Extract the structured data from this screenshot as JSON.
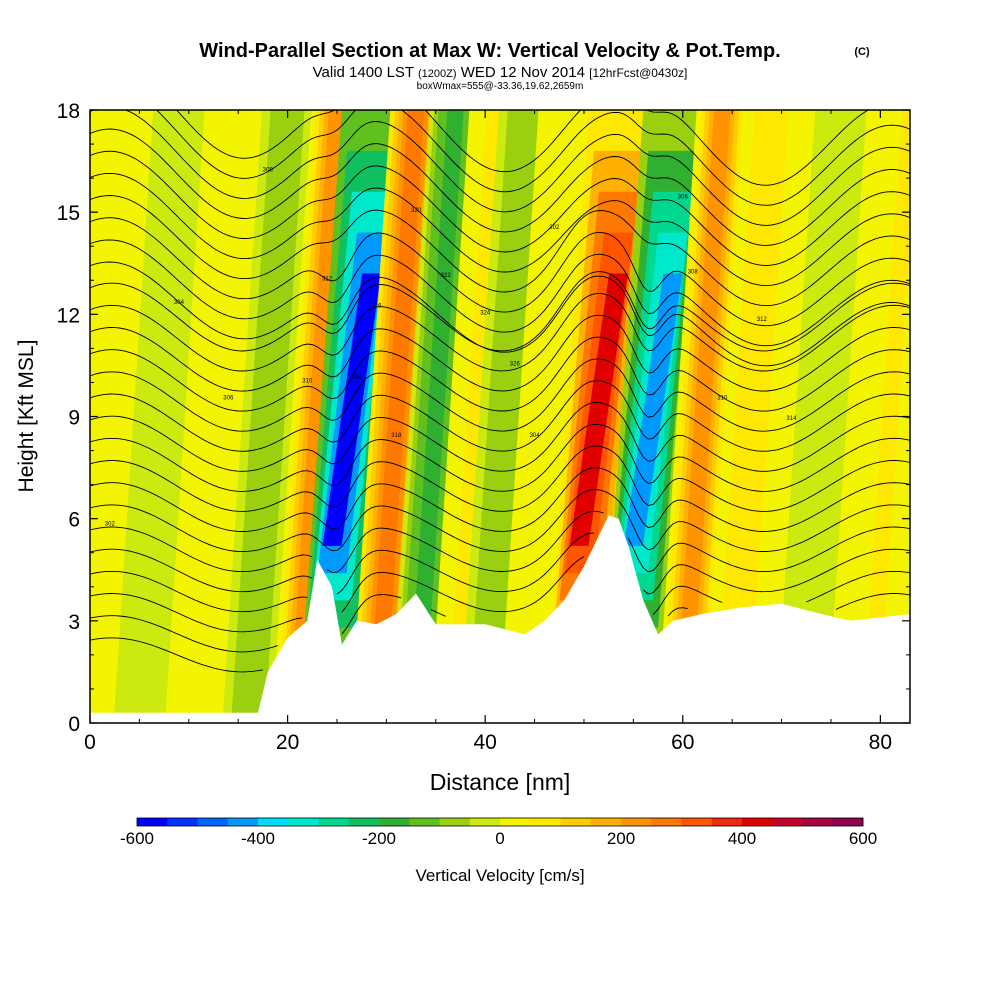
{
  "chart_data": {
    "type": "heatmap",
    "title": "Wind-Parallel Section at Max W: Vertical Velocity & Pot.Temp.",
    "title_mark": "(C)",
    "subtitle_prefix": "Valid 1400 LST",
    "subtitle_utc": "(1200Z)",
    "subtitle_date": "WED 12 Nov 2014",
    "subtitle_fcst": "[12hrFcst@0430z]",
    "subsubtitle": "boxWmax=555@-33.36,19.62,2659m",
    "xlabel": "Distance [nm]",
    "ylabel": "Height [Kft MSL]",
    "xlim": [
      0,
      83
    ],
    "ylim": [
      0,
      18
    ],
    "xticks": [
      "0",
      "20",
      "40",
      "60",
      "80"
    ],
    "yticks": [
      "0",
      "3",
      "6",
      "9",
      "12",
      "15",
      "18"
    ],
    "colorbar": {
      "label": "Vertical Velocity [cm/s]",
      "ticks": [
        "-600",
        "-400",
        "-200",
        "0",
        "200",
        "400",
        "600"
      ],
      "range": [
        -600,
        600
      ],
      "colors": [
        "#0000ff",
        "#0033ff",
        "#0066ff",
        "#0099ff",
        "#00ddff",
        "#00e8cc",
        "#00d890",
        "#10c060",
        "#30b030",
        "#60c020",
        "#9ad010",
        "#ccea10",
        "#f4f400",
        "#ffe800",
        "#ffcc00",
        "#ffb000",
        "#ff9400",
        "#ff7800",
        "#ff5400",
        "#f02810",
        "#e00000",
        "#c8002a",
        "#a80040",
        "#900050"
      ]
    },
    "w_bands": [
      {
        "x": 5,
        "w": -40
      },
      {
        "x": 12,
        "w": 20
      },
      {
        "x": 16,
        "w": -90
      },
      {
        "x": 21,
        "w": 220
      },
      {
        "x": 24.5,
        "w": -560
      },
      {
        "x": 29,
        "w": 250
      },
      {
        "x": 33,
        "w": -170
      },
      {
        "x": 37,
        "w": 50
      },
      {
        "x": 40,
        "w": -90
      },
      {
        "x": 44,
        "w": 40
      },
      {
        "x": 49.5,
        "w": 430
      },
      {
        "x": 55,
        "w": -420
      },
      {
        "x": 60,
        "w": 230
      },
      {
        "x": 65,
        "w": 90
      },
      {
        "x": 72,
        "w": -40
      },
      {
        "x": 79,
        "w": 60
      }
    ],
    "terrain_kft": [
      [
        0,
        0.3
      ],
      [
        17,
        0.3
      ],
      [
        18,
        1.5
      ],
      [
        20,
        2.5
      ],
      [
        22,
        3.0
      ],
      [
        23,
        4.8
      ],
      [
        24.5,
        4.0
      ],
      [
        25.5,
        2.3
      ],
      [
        27,
        3.0
      ],
      [
        29,
        2.9
      ],
      [
        31,
        3.2
      ],
      [
        33,
        3.8
      ],
      [
        35,
        2.9
      ],
      [
        40,
        2.9
      ],
      [
        44,
        2.6
      ],
      [
        46,
        3.0
      ],
      [
        48,
        3.6
      ],
      [
        50,
        4.6
      ],
      [
        51.5,
        5.5
      ],
      [
        52.5,
        6.1
      ],
      [
        53.5,
        6.0
      ],
      [
        54.5,
        5.2
      ],
      [
        56,
        3.6
      ],
      [
        57.5,
        2.6
      ],
      [
        59,
        3.0
      ],
      [
        62,
        3.2
      ],
      [
        66,
        3.4
      ],
      [
        70,
        3.5
      ],
      [
        74,
        3.2
      ],
      [
        77,
        3.0
      ],
      [
        83,
        3.2
      ]
    ],
    "theta_labels": [
      "302",
      "304",
      "306",
      "308",
      "310",
      "312",
      "314",
      "316",
      "318",
      "320",
      "322",
      "324",
      "326"
    ]
  }
}
